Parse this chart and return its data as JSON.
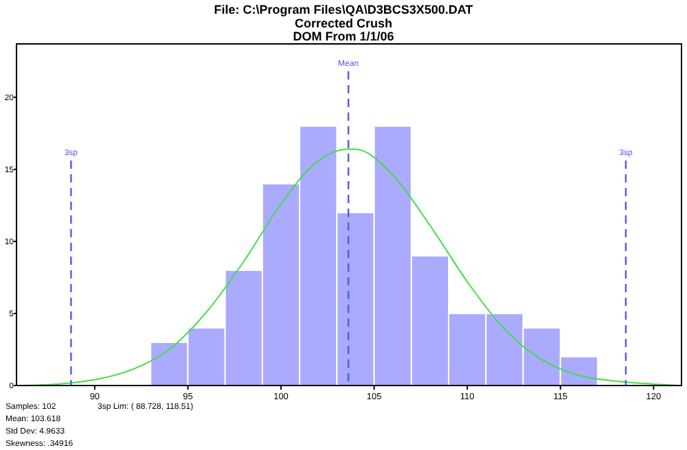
{
  "chart_data": {
    "type": "histogram",
    "title": "File: C:\\Program Files\\QA\\D3BCS3X500.DAT",
    "subtitle": "Corrected Crush\nDOM From 1/1/06",
    "bins": [
      93,
      95,
      97,
      99,
      101,
      103,
      105,
      107,
      109,
      111,
      113,
      115,
      117
    ],
    "values": [
      3,
      4,
      8,
      14,
      18,
      12,
      18,
      9,
      5,
      5,
      4,
      2
    ],
    "color": "#aaaaff",
    "series": [
      {
        "type": "line",
        "color": "#44dd44",
        "x": [
          85.8,
          88,
          90,
          92,
          94,
          96,
          98,
          100,
          102,
          103.618,
          104,
          106,
          108,
          110,
          112,
          114,
          116,
          118,
          120,
          121.4
        ],
        "values": [
          0,
          0.1,
          0.4,
          1.1,
          2.5,
          5.1,
          8.6,
          12.6,
          15.6,
          16.4,
          16.4,
          14.6,
          11.1,
          7.2,
          3.9,
          1.8,
          0.7,
          0.3,
          0.1,
          0
        ]
      }
    ],
    "xlim": [
      85.8,
      121.5
    ],
    "xticks": [
      90,
      95,
      100,
      105,
      110,
      115,
      120
    ],
    "ylim": [
      0,
      23.7
    ],
    "yticks": [
      0,
      5,
      10,
      15,
      20
    ],
    "grid": false,
    "ref_lines": [
      {
        "axis": "x",
        "value": 103.618,
        "label": "Mean",
        "color": "#5555ee",
        "line_style": "dashed"
      },
      {
        "axis": "x",
        "value": 88.728,
        "label": "3sp",
        "color": "#5555ee",
        "line_style": "dashed"
      },
      {
        "axis": "x",
        "value": 118.51,
        "label": "3sp",
        "color": "#5555ee",
        "line_style": "dashed"
      }
    ],
    "annotations": [
      "Samples: 102",
      "3sp Lim: ( 88.728, 118.51)",
      "Mean: 103.618",
      "Std Dev: 4.9633",
      "Skewness: .34916"
    ]
  }
}
